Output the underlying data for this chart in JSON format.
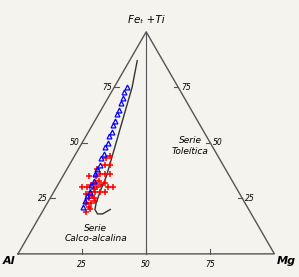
{
  "title": "Feₜ +Ti",
  "bg_color": "#f5f3ee",
  "triangle_color": "#555555",
  "label_serie_tholeiitic": "Serie\nToleítica",
  "label_serie_calcalkaline": "Serie\nCalco-alcalina",
  "red_plus_points": [
    [
      55,
      10,
      35
    ],
    [
      60,
      10,
      30
    ],
    [
      50,
      12,
      38
    ],
    [
      58,
      12,
      30
    ],
    [
      52,
      13,
      35
    ],
    [
      56,
      13,
      31
    ],
    [
      60,
      13,
      27
    ],
    [
      58,
      14,
      28
    ],
    [
      54,
      14,
      32
    ],
    [
      50,
      14,
      36
    ],
    [
      52,
      15,
      33
    ],
    [
      56,
      15,
      29
    ],
    [
      60,
      15,
      25
    ],
    [
      62,
      15,
      23
    ],
    [
      58,
      16,
      26
    ],
    [
      56,
      16,
      28
    ],
    [
      54,
      16,
      30
    ],
    [
      52,
      17,
      31
    ],
    [
      58,
      17,
      25
    ],
    [
      62,
      17,
      21
    ],
    [
      60,
      17,
      23
    ],
    [
      64,
      17,
      19
    ],
    [
      62,
      18,
      20
    ],
    [
      58,
      18,
      24
    ],
    [
      54,
      18,
      28
    ],
    [
      50,
      18,
      32
    ],
    [
      48,
      16,
      36
    ],
    [
      46,
      14,
      40
    ],
    [
      44,
      13,
      43
    ],
    [
      52,
      20,
      28
    ],
    [
      50,
      20,
      30
    ],
    [
      46,
      18,
      36
    ],
    [
      44,
      16,
      40
    ],
    [
      42,
      14,
      44
    ],
    [
      48,
      22,
      30
    ]
  ],
  "blue_triangle_points": [
    [
      20,
      5,
      75
    ],
    [
      22,
      5,
      73
    ],
    [
      24,
      6,
      70
    ],
    [
      26,
      6,
      68
    ],
    [
      28,
      7,
      65
    ],
    [
      30,
      7,
      63
    ],
    [
      32,
      8,
      60
    ],
    [
      34,
      8,
      58
    ],
    [
      36,
      9,
      55
    ],
    [
      38,
      9,
      53
    ],
    [
      40,
      10,
      50
    ],
    [
      42,
      10,
      48
    ],
    [
      44,
      11,
      45
    ],
    [
      46,
      11,
      43
    ],
    [
      48,
      12,
      40
    ],
    [
      50,
      12,
      38
    ],
    [
      52,
      12,
      36
    ],
    [
      54,
      13,
      33
    ],
    [
      56,
      13,
      31
    ],
    [
      58,
      14,
      28
    ],
    [
      60,
      14,
      26
    ],
    [
      62,
      14,
      24
    ],
    [
      64,
      15,
      21
    ]
  ],
  "boundary_curve": [
    [
      10,
      3,
      87
    ],
    [
      14,
      5,
      81
    ],
    [
      18,
      7,
      75
    ],
    [
      24,
      9,
      67
    ],
    [
      30,
      11,
      59
    ],
    [
      36,
      13,
      51
    ],
    [
      42,
      15,
      43
    ],
    [
      48,
      17,
      35
    ],
    [
      54,
      18,
      28
    ],
    [
      58,
      19,
      23
    ],
    [
      60,
      20,
      20
    ],
    [
      60,
      22,
      18
    ],
    [
      58,
      24,
      18
    ],
    [
      54,
      26,
      20
    ]
  ],
  "tick_vals": [
    25,
    50,
    75
  ],
  "figsize": [
    2.99,
    2.77
  ],
  "dpi": 100
}
